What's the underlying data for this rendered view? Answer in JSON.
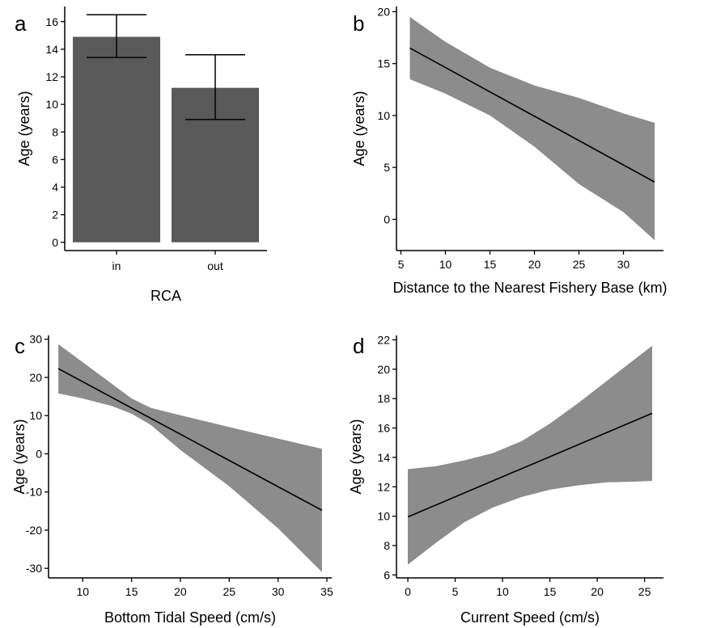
{
  "chart_data": [
    {
      "panel": "a",
      "type": "bar",
      "xlabel": "RCA",
      "ylabel": "Age (years)",
      "categories": [
        "in",
        "out"
      ],
      "values": [
        14.9,
        11.2
      ],
      "error_low": [
        13.4,
        8.9
      ],
      "error_high": [
        16.5,
        13.6
      ],
      "ylim": [
        -0.6,
        17.1
      ],
      "yticks": [
        0,
        2,
        4,
        6,
        8,
        10,
        12,
        14,
        16
      ],
      "color": "#595959"
    },
    {
      "panel": "b",
      "type": "line",
      "xlabel": "Distance to the Nearest Fishery Base (km)",
      "ylabel": "Age (years)",
      "x": [
        6,
        33.5
      ],
      "y": [
        16.5,
        3.6
      ],
      "ci_x": [
        6,
        10,
        15,
        20,
        25,
        30,
        33.5
      ],
      "ci_upper": [
        19.5,
        17.1,
        14.6,
        12.9,
        11.7,
        10.2,
        9.3
      ],
      "ci_lower": [
        13.5,
        12.1,
        10.0,
        7.0,
        3.4,
        0.7,
        -2.0
      ],
      "xlim": [
        4.5,
        34.5
      ],
      "ylim": [
        -3,
        20.5
      ],
      "xticks": [
        5,
        10,
        15,
        20,
        25,
        30
      ],
      "yticks": [
        0,
        5,
        10,
        15,
        20
      ],
      "band_color": "#8c8c8c"
    },
    {
      "panel": "c",
      "type": "line",
      "xlabel": "Bottom Tidal Speed (cm/s)",
      "ylabel": "Age (years)",
      "x": [
        7.5,
        34.5
      ],
      "y": [
        22.3,
        -14.8
      ],
      "ci_x": [
        7.5,
        10,
        13,
        15,
        17,
        20,
        25,
        30,
        34.5
      ],
      "ci_upper": [
        28.7,
        24.0,
        18.3,
        14.5,
        12.0,
        10.1,
        7.0,
        4.0,
        1.3
      ],
      "ci_lower": [
        15.8,
        14.5,
        12.5,
        10.5,
        7.5,
        1.0,
        -8.5,
        -19.5,
        -31.0
      ],
      "xlim": [
        6.5,
        35.5
      ],
      "ylim": [
        -32.5,
        31
      ],
      "xticks": [
        10,
        15,
        20,
        25,
        30,
        35
      ],
      "yticks": [
        -30,
        -20,
        -10,
        0,
        10,
        20,
        30
      ],
      "band_color": "#8c8c8c"
    },
    {
      "panel": "d",
      "type": "line",
      "xlabel": "Current Speed (cm/s)",
      "ylabel": "Age (years)",
      "x": [
        0,
        25.8
      ],
      "y": [
        9.95,
        17.0
      ],
      "ci_x": [
        0,
        3,
        6,
        9,
        12,
        15,
        18,
        21,
        24,
        25.8
      ],
      "ci_upper": [
        13.2,
        13.4,
        13.8,
        14.3,
        15.1,
        16.3,
        17.7,
        19.2,
        20.7,
        21.6
      ],
      "ci_lower": [
        6.7,
        8.2,
        9.6,
        10.6,
        11.3,
        11.8,
        12.1,
        12.3,
        12.35,
        12.4
      ],
      "xlim": [
        -1.2,
        27
      ],
      "ylim": [
        5.8,
        22.3
      ],
      "xticks": [
        0,
        5,
        10,
        15,
        20,
        25
      ],
      "yticks": [
        6,
        8,
        10,
        12,
        14,
        16,
        18,
        20,
        22
      ],
      "band_color": "#8c8c8c"
    }
  ]
}
